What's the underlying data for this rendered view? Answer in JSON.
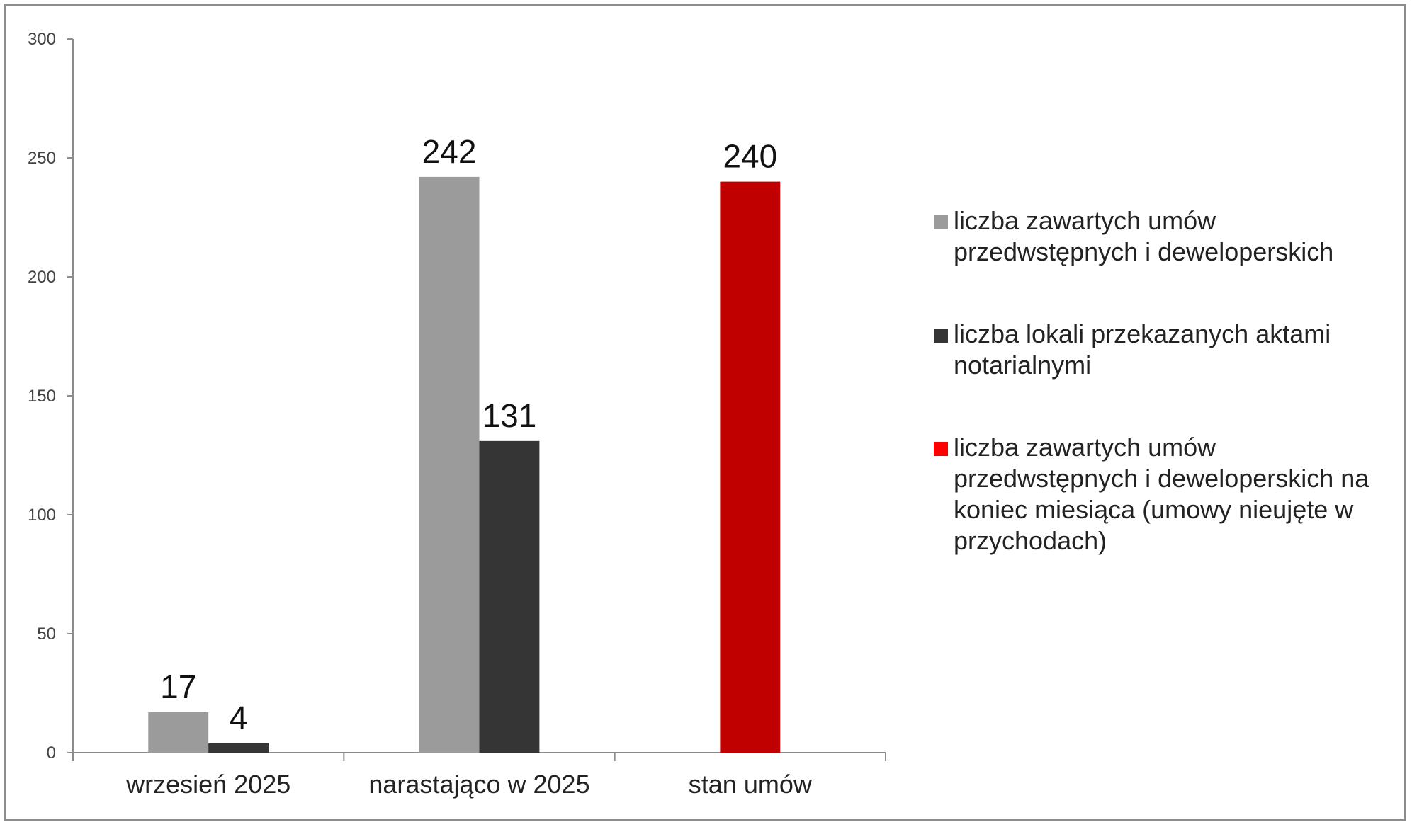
{
  "chart_data": {
    "type": "bar",
    "categories": [
      "wrzesień 2025",
      "narastająco w 2025",
      "stan umów"
    ],
    "series": [
      {
        "name": "liczba zawartych umów przedwstępnych i deweloperskich",
        "color": "#9b9b9b",
        "values": [
          17,
          242,
          null
        ]
      },
      {
        "name": "liczba lokali przekazanych aktami notarialnymi",
        "color": "#353535",
        "values": [
          4,
          131,
          null
        ]
      },
      {
        "name": "liczba zawartych umów przedwstępnych i deweloperskich na koniec miesiąca (umowy nieujęte w przychodach)",
        "color": "#c00000",
        "values": [
          null,
          null,
          240
        ]
      }
    ],
    "legend_colors": [
      "#9b9b9b",
      "#353535",
      "#ff0000"
    ],
    "ylim": [
      0,
      300
    ],
    "yticks": [
      0,
      50,
      100,
      150,
      200,
      250,
      300
    ],
    "grid": false,
    "legend_position": "right"
  }
}
